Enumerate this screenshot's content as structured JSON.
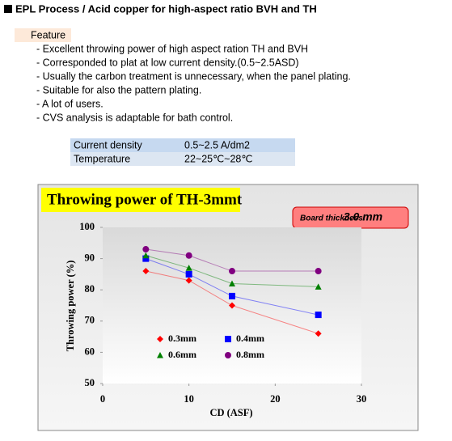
{
  "header": {
    "title": "EPL Process / Acid copper for high-aspect ratio BVH and TH"
  },
  "feature": {
    "label": "Feature",
    "items": [
      "- Excellent throwing power of high aspect ration TH and BVH",
      "- Corresponded to plat at low current density.(0.5~2.5ASD)",
      "- Usually the carbon treatment is unnecessary, when the panel plating.",
      "- Suitable for also the pattern plating.",
      "- A lot of users.",
      "- CVS analysis is adaptable for bath control."
    ]
  },
  "table": {
    "rows": [
      [
        "Current density",
        "0.5~2.5 A/dm2"
      ],
      [
        "Temperature",
        "22~25℃~28℃"
      ]
    ]
  },
  "chart_data": {
    "type": "line",
    "title": "Throwing power of TH-3mmt",
    "annotations": [
      "Board thickness:",
      "3.0 mm"
    ],
    "x_label": "CD (ASF)",
    "y_label": "Throwing power (%)",
    "x": [
      5,
      10,
      15,
      25
    ],
    "series": [
      {
        "name": "0.3mm",
        "color": "#ff0000",
        "marker": "diamond",
        "values": [
          86,
          83,
          75,
          66
        ]
      },
      {
        "name": "0.4mm",
        "color": "#0000ff",
        "marker": "square",
        "values": [
          90,
          85,
          78,
          72
        ]
      },
      {
        "name": "0.6mm",
        "color": "#008000",
        "marker": "triangle",
        "values": [
          91,
          87,
          82,
          81
        ]
      },
      {
        "name": "0.8mm",
        "color": "#800080",
        "marker": "circle",
        "values": [
          93,
          91,
          86,
          86
        ]
      }
    ],
    "xlim": [
      0,
      30
    ],
    "xticks": [
      0,
      10,
      20,
      30
    ],
    "ylim": [
      50,
      100
    ],
    "yticks": [
      50,
      60,
      70,
      80,
      90,
      100
    ],
    "grid": false
  }
}
